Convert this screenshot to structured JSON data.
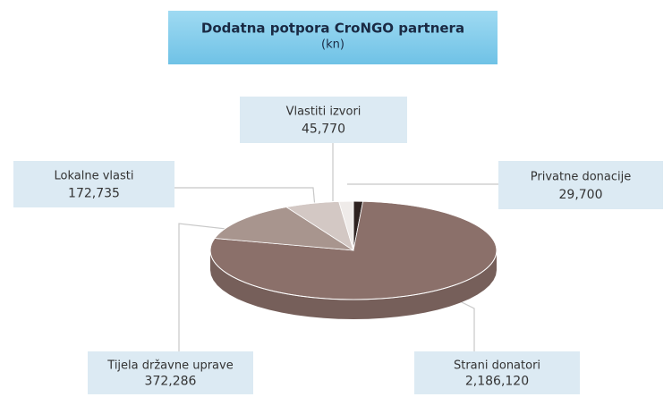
{
  "chart_data": {
    "type": "pie",
    "title": "Dodatna potpora CroNGO partnera",
    "subtitle": "(kn)",
    "categories": [
      "Privatne donacije",
      "Strani donatori",
      "Tijela državne uprave",
      "Lokalne vlasti",
      "Vlastiti izvori"
    ],
    "values": [
      29700,
      2186120,
      372286,
      172735,
      45770
    ],
    "value_labels": [
      "29,700",
      "2,186,120",
      "372,286",
      "172,735",
      "45,770"
    ],
    "colors": [
      "#2e2220",
      "#8b706a",
      "#a8958e",
      "#d3c8c4",
      "#efebe9"
    ]
  }
}
